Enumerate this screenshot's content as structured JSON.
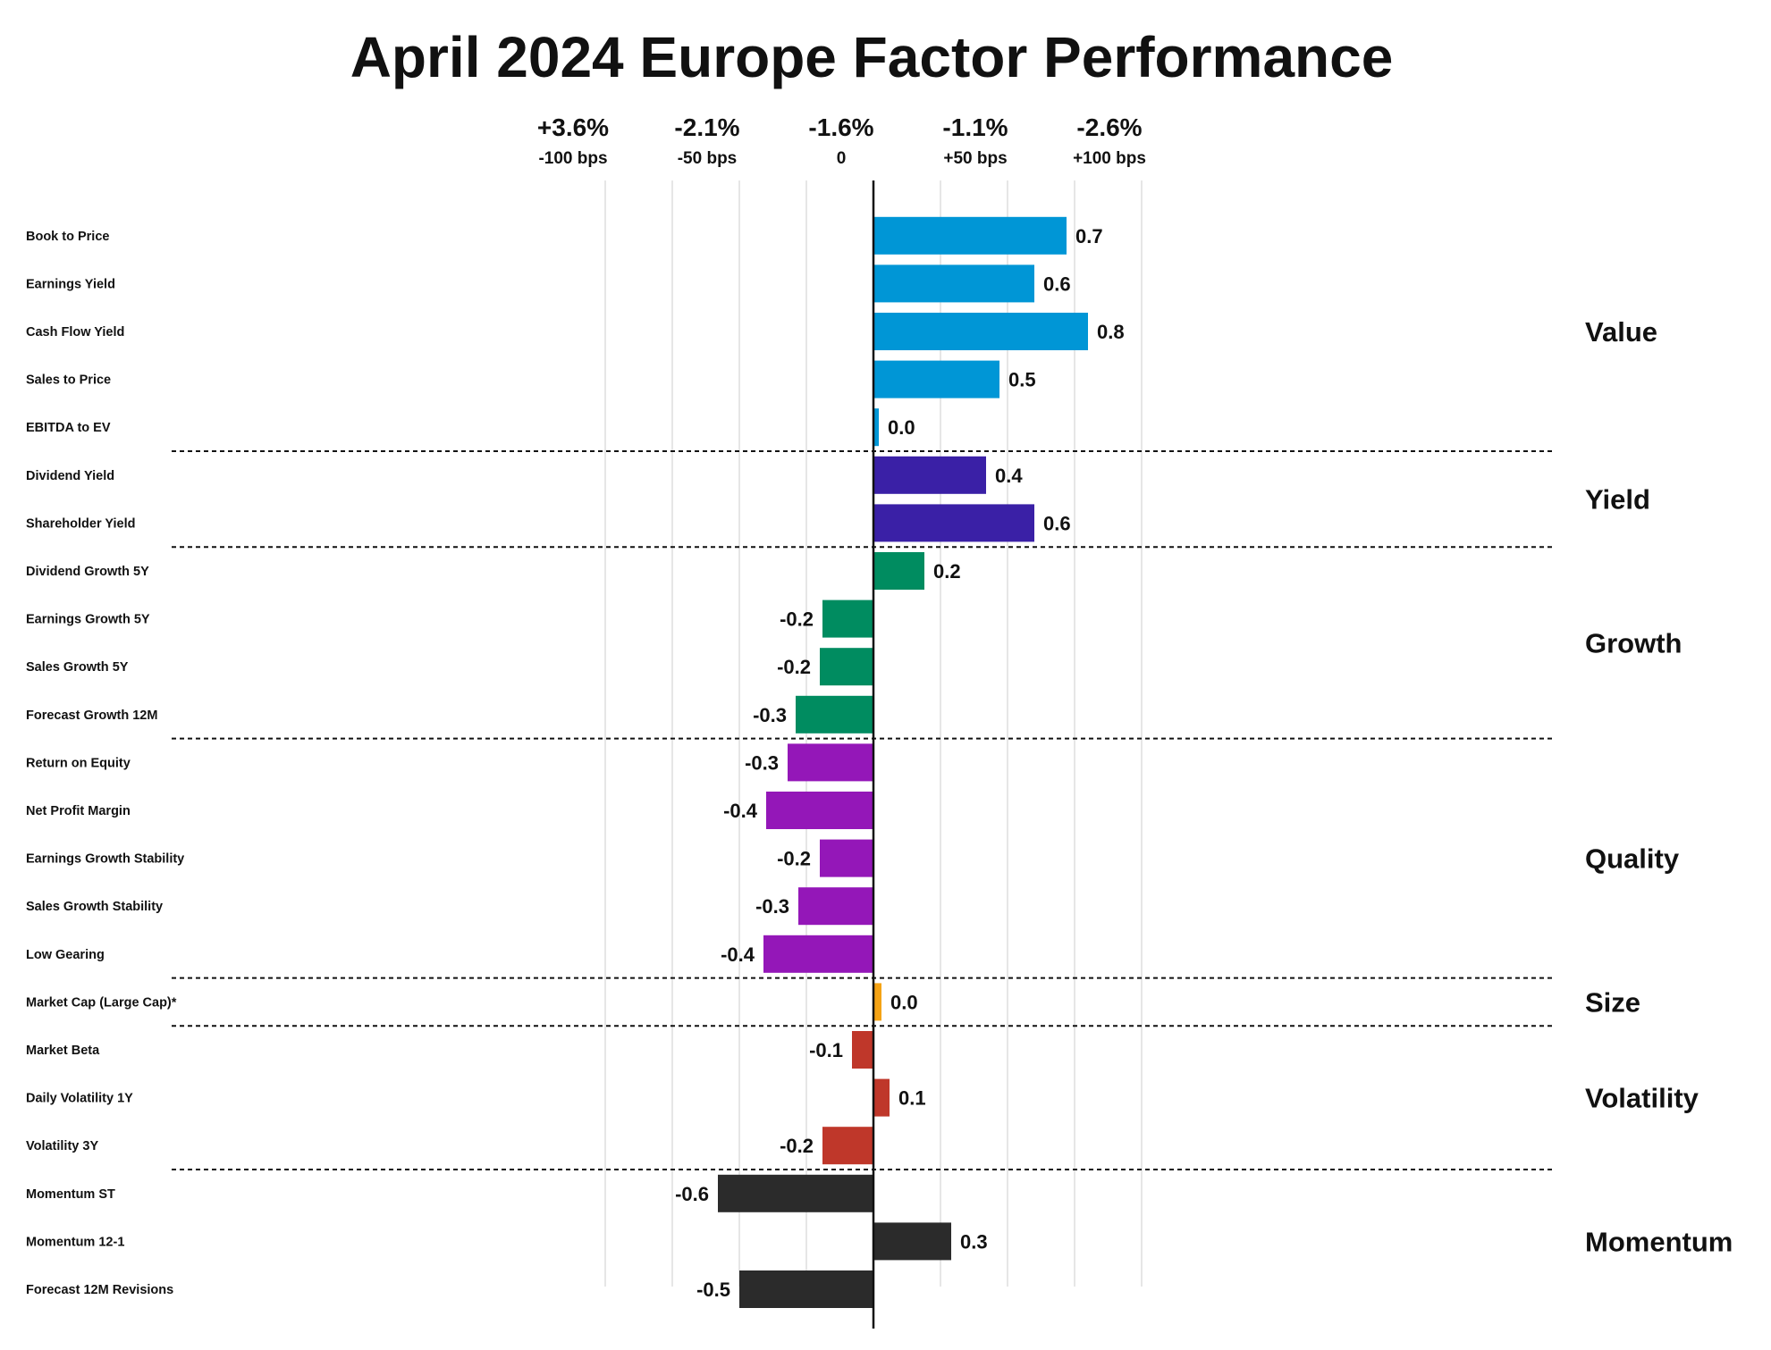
{
  "title": "April 2024 Europe Factor Performance",
  "top_axis": [
    {
      "value": "+3.6%",
      "bps": "-100 bps",
      "pos": -100
    },
    {
      "value": "-2.1%",
      "bps": "-50 bps",
      "pos": -50
    },
    {
      "value": "-1.6%",
      "bps": "0",
      "pos": 0
    },
    {
      "value": "-1.1%",
      "bps": "+50 bps",
      "pos": 50
    },
    {
      "value": "-2.6%",
      "bps": "+100 bps",
      "pos": 100
    }
  ],
  "chart_data": {
    "type": "bar",
    "orientation": "horizontal",
    "title": "April 2024 Europe Factor Performance",
    "xlim": [
      -125,
      125
    ],
    "grid": true,
    "categories": [
      "Book to Price",
      "Earnings Yield",
      "Cash Flow Yield",
      "Sales to Price",
      "EBITDA to EV",
      "Dividend Yield",
      "Shareholder Yield",
      "Dividend Growth 5Y",
      "Earnings Growth 5Y",
      "Sales Growth 5Y",
      "Forecast Growth 12M",
      "Return on Equity",
      "Net Profit Margin",
      "Earnings Growth Stability",
      "Sales Growth Stability",
      "Low Gearing",
      "Market Cap (Large Cap)*",
      "Market Beta",
      "Daily Volatility 1Y",
      "Volatility 3Y",
      "Momentum ST",
      "Momentum 12-1",
      "Forecast 12M Revisions"
    ],
    "values": [
      72,
      60,
      80,
      47,
      2,
      42,
      60,
      19,
      -19,
      -20,
      -29,
      -32,
      -40,
      -20,
      -28,
      -41,
      3,
      -8,
      6,
      -19,
      -58,
      29,
      -50
    ],
    "value_labels": [
      "0.7",
      "0.6",
      "0.8",
      "0.5",
      "0.0",
      "0.4",
      "0.6",
      "0.2",
      "-0.2",
      "-0.2",
      "-0.3",
      "-0.3",
      "-0.4",
      "-0.2",
      "-0.3",
      "-0.4",
      "0.0",
      "-0.1",
      "0.1",
      "-0.2",
      "-0.6",
      "0.3",
      "-0.5"
    ],
    "groups": [
      {
        "name": "Value",
        "start": 0,
        "end": 4,
        "color": "#0096d6"
      },
      {
        "name": "Yield",
        "start": 5,
        "end": 6,
        "color": "#3a20a6"
      },
      {
        "name": "Growth",
        "start": 7,
        "end": 10,
        "color": "#008c60"
      },
      {
        "name": "Quality",
        "start": 11,
        "end": 15,
        "color": "#9417b8"
      },
      {
        "name": "Size",
        "start": 16,
        "end": 16,
        "color": "#f5a315"
      },
      {
        "name": "Volatility",
        "start": 17,
        "end": 19,
        "color": "#bf372a"
      },
      {
        "name": "Momentum",
        "start": 20,
        "end": 22,
        "color": "#2b2b2b"
      }
    ]
  }
}
